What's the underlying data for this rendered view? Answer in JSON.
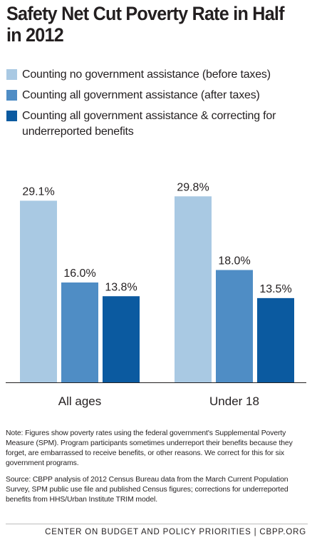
{
  "chart_data": {
    "type": "bar",
    "title": "Safety Net Cut Poverty Rate in Half in 2012",
    "categories": [
      "All ages",
      "Under 18"
    ],
    "series": [
      {
        "name": "Counting no government assistance (before taxes)",
        "values": [
          29.1,
          29.8
        ],
        "color": "#a9c9e3",
        "labels": [
          "29.1%",
          "29.8%"
        ]
      },
      {
        "name": "Counting all government assistance (after taxes)",
        "values": [
          16.0,
          18.0
        ],
        "color": "#4f8dc5",
        "labels": [
          "16.0%",
          "18.0%"
        ]
      },
      {
        "name": "Counting all government assistance & correcting for underreported benefits",
        "values": [
          13.8,
          13.5
        ],
        "color": "#0b5aa0",
        "labels": [
          "13.8%",
          "13.5%"
        ]
      }
    ],
    "ylim": [
      0,
      35
    ],
    "grid": false,
    "legend": "top-left",
    "xlabel": "",
    "ylabel": ""
  },
  "notes": {
    "note": "Note: Figures show poverty rates using the federal government's Supplemental Poverty Measure (SPM). Program participants sometimes underreport their benefits because they forget, are embarrassed to receive benefits, or other reasons. We correct for this for six government programs.",
    "source": "Source: CBPP analysis of 2012 Census Bureau data from the March Current Population Survey, SPM public use file and published Census figures; corrections for underreported benefits from HHS/Urban Institute TRIM model."
  },
  "footer": "CENTER ON BUDGET AND POLICY PRIORITIES | CBPP.ORG"
}
